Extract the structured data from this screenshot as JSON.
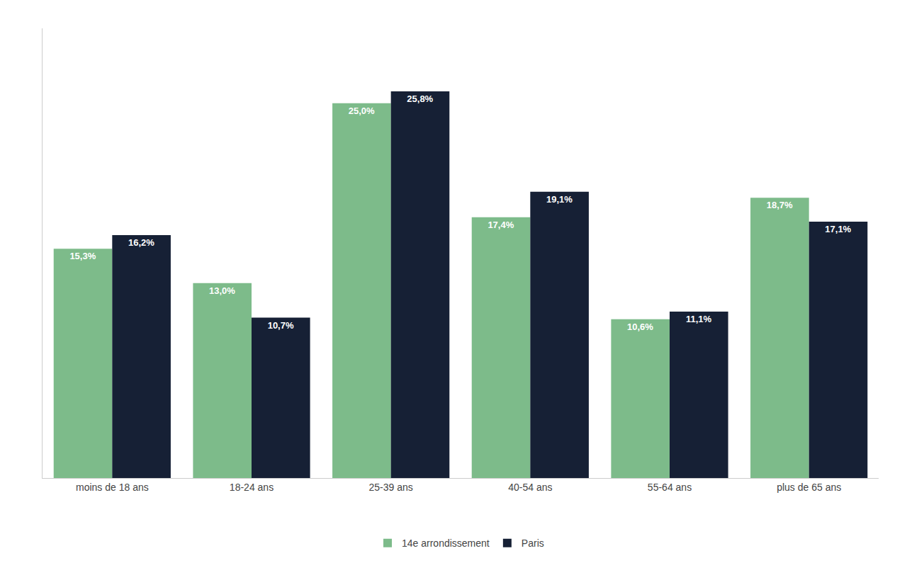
{
  "chart_data": {
    "type": "bar",
    "categories": [
      "moins de 18 ans",
      "18-24 ans",
      "25-39 ans",
      "40-54 ans",
      "55-64 ans",
      "plus de 65 ans"
    ],
    "series": [
      {
        "name": "14e arrondissement",
        "color": "#7dbb8a",
        "values": [
          15.3,
          13.0,
          25.0,
          17.4,
          10.6,
          18.7
        ],
        "value_labels": [
          "15,3%",
          "13,0%",
          "25,0%",
          "17,4%",
          "10,6%",
          "18,7%"
        ]
      },
      {
        "name": "Paris",
        "color": "#162035",
        "values": [
          16.2,
          10.7,
          25.8,
          19.1,
          11.1,
          17.1
        ],
        "value_labels": [
          "16,2%",
          "10,7%",
          "25,8%",
          "19,1%",
          "11,1%",
          "17,1%"
        ]
      }
    ],
    "ylim": [
      0,
      30
    ],
    "grid": false,
    "legend": "bottom",
    "data_labels": true,
    "tick_labels": "x"
  }
}
